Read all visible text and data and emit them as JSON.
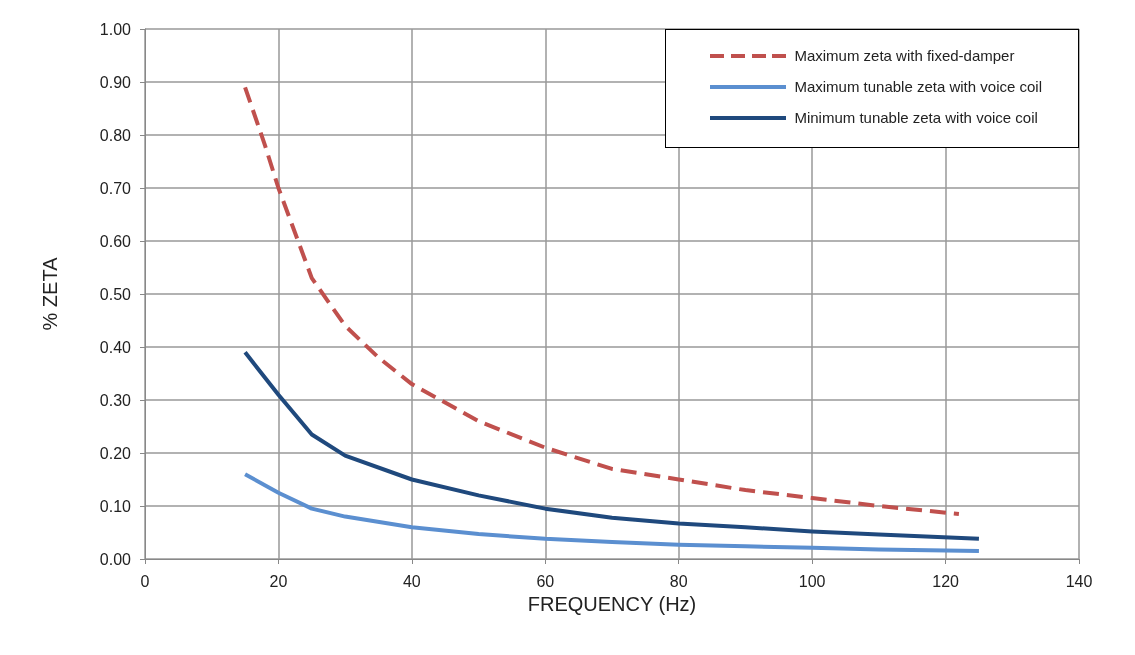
{
  "chart_data": {
    "type": "line",
    "xlabel": "FREQUENCY (Hz)",
    "ylabel": "% ZETA",
    "xlim": [
      0,
      140
    ],
    "xticks": [
      0,
      20,
      40,
      60,
      80,
      100,
      120,
      140
    ],
    "ylim": [
      0,
      1
    ],
    "yticks": [
      {
        "value": 0,
        "label": "0.00"
      },
      {
        "value": 0.1,
        "label": "0.10"
      },
      {
        "value": 0.2,
        "label": "0.20"
      },
      {
        "value": 0.3,
        "label": "0.30"
      },
      {
        "value": 0.4,
        "label": "0.40"
      },
      {
        "value": 0.5,
        "label": "0.50"
      },
      {
        "value": 0.6,
        "label": "0.60"
      },
      {
        "value": 0.7,
        "label": "0.70"
      },
      {
        "value": 0.8,
        "label": "0.80"
      },
      {
        "value": 0.9,
        "label": "0.90"
      },
      {
        "value": 1,
        "label": "1.00"
      }
    ],
    "grid": true,
    "legend": "top right",
    "marker": "none",
    "series": [
      {
        "name": "Maximum zeta with fixed-damper",
        "color": "#c0504d",
        "line_style": "dashed",
        "x": [
          15,
          18,
          20,
          25,
          30,
          35,
          40,
          50,
          60,
          70,
          80,
          90,
          100,
          110,
          122
        ],
        "values": [
          0.89,
          0.78,
          0.7,
          0.53,
          0.44,
          0.38,
          0.33,
          0.26,
          0.21,
          0.17,
          0.15,
          0.13,
          0.115,
          0.1,
          0.085
        ]
      },
      {
        "name": "Maximum tunable zeta with voice coil",
        "color": "#5b8fd0",
        "line_style": "solid",
        "x": [
          15,
          20,
          25,
          30,
          40,
          50,
          60,
          70,
          80,
          90,
          100,
          110,
          125
        ],
        "values": [
          0.16,
          0.125,
          0.095,
          0.08,
          0.06,
          0.047,
          0.038,
          0.032,
          0.027,
          0.024,
          0.021,
          0.018,
          0.015
        ]
      },
      {
        "name": "Minimum tunable zeta with voice coil",
        "color": "#1f497d",
        "line_style": "solid",
        "x": [
          15,
          20,
          25,
          30,
          40,
          50,
          60,
          70,
          80,
          90,
          100,
          110,
          125
        ],
        "values": [
          0.39,
          0.31,
          0.235,
          0.195,
          0.15,
          0.12,
          0.095,
          0.078,
          0.067,
          0.06,
          0.052,
          0.046,
          0.038
        ]
      }
    ]
  }
}
